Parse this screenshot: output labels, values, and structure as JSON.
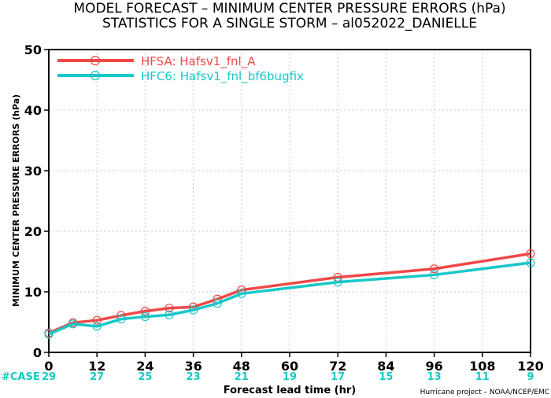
{
  "title_line1": "MODEL FORECAST – MINIMUM CENTER PRESSURE ERRORS (hPa)",
  "title_line2": "STATISTICS FOR A SINGLE STORM – al052022_DANIELLE",
  "case_label": "#CASE",
  "credit": "Hurricane project – NOAA/NCEP/EMC",
  "chart_data": {
    "type": "line",
    "xlabel": "Forecast lead time (hr)",
    "ylabel": "MINIMUM CENTER PRESSURE ERRORS (hPa)",
    "xlim": [
      0,
      120
    ],
    "ylim": [
      0,
      50
    ],
    "xticks": [
      0,
      12,
      24,
      36,
      48,
      60,
      72,
      84,
      96,
      108,
      120
    ],
    "yticks": [
      0,
      10,
      20,
      30,
      40,
      50
    ],
    "grid": true,
    "legend_position": "top-left",
    "series": [
      {
        "name": "HFSA: Hafsv1_fnl_A",
        "color": "#f04848",
        "x": [
          0,
          6,
          12,
          18,
          24,
          30,
          36,
          42,
          48,
          72,
          96,
          120
        ],
        "y": [
          3.2,
          4.9,
          5.3,
          6.1,
          6.8,
          7.3,
          7.5,
          8.8,
          10.3,
          12.4,
          13.8,
          16.3
        ]
      },
      {
        "name": "HFC6: Hafsv1_fnl_bf6bugfix",
        "color": "#18c8c8",
        "x": [
          0,
          6,
          12,
          18,
          24,
          30,
          36,
          42,
          48,
          72,
          96,
          120
        ],
        "y": [
          3.0,
          4.7,
          4.3,
          5.5,
          5.9,
          6.2,
          7.0,
          8.1,
          9.7,
          11.6,
          12.8,
          14.8
        ]
      }
    ],
    "case_counts": [
      {
        "x": 0,
        "label": "29"
      },
      {
        "x": 12,
        "label": "27"
      },
      {
        "x": 24,
        "label": "25"
      },
      {
        "x": 36,
        "label": "23"
      },
      {
        "x": 48,
        "label": "21"
      },
      {
        "x": 60,
        "label": "19"
      },
      {
        "x": 72,
        "label": "17"
      },
      {
        "x": 84,
        "label": "15"
      },
      {
        "x": 96,
        "label": "13"
      },
      {
        "x": 108,
        "label": "11"
      },
      {
        "x": 120,
        "label": "9"
      }
    ]
  }
}
